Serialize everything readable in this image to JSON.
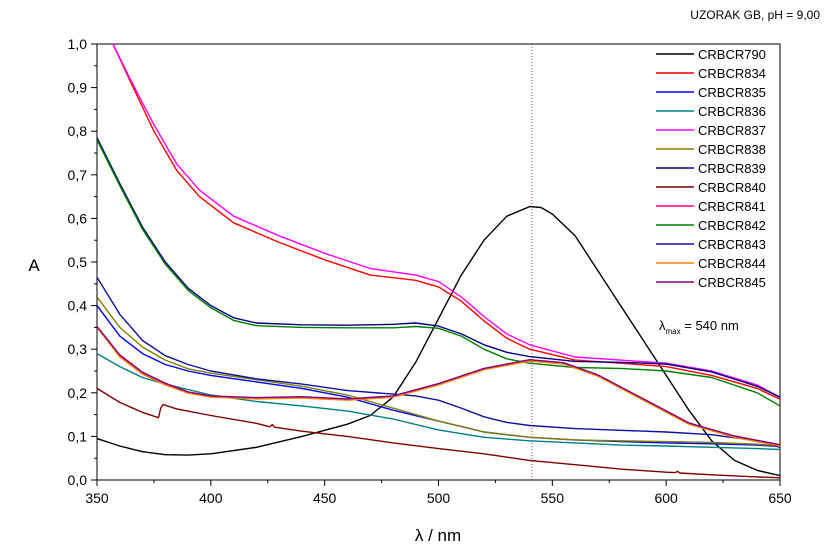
{
  "chart_data": {
    "type": "line",
    "title": "UZORAK GB, pH = 9,00",
    "xlabel": "λ / nm",
    "ylabel": "A",
    "xlim": [
      350,
      650
    ],
    "ylim": [
      0.0,
      1.0
    ],
    "x_ticks": [
      "350",
      "400",
      "450",
      "500",
      "550",
      "600",
      "650"
    ],
    "y_ticks": [
      "0,0",
      "0,1",
      "0,2",
      "0,3",
      "0,4",
      "0,5",
      "0,6",
      "0,7",
      "0,8",
      "0,9",
      "1,0"
    ],
    "legend_position": "top-right",
    "grid": false,
    "annotation": {
      "lambda": "λ",
      "subscript": "max",
      "text": " = 540 nm",
      "vline_x": 541
    },
    "series": [
      {
        "name": "CRBCR790",
        "color": "#000000",
        "points": [
          [
            350,
            0.095
          ],
          [
            360,
            0.078
          ],
          [
            370,
            0.065
          ],
          [
            380,
            0.058
          ],
          [
            390,
            0.057
          ],
          [
            400,
            0.06
          ],
          [
            420,
            0.075
          ],
          [
            440,
            0.1
          ],
          [
            460,
            0.128
          ],
          [
            470,
            0.148
          ],
          [
            480,
            0.19
          ],
          [
            490,
            0.27
          ],
          [
            500,
            0.37
          ],
          [
            510,
            0.47
          ],
          [
            520,
            0.55
          ],
          [
            530,
            0.605
          ],
          [
            540,
            0.627
          ],
          [
            545,
            0.625
          ],
          [
            550,
            0.61
          ],
          [
            560,
            0.56
          ],
          [
            570,
            0.48
          ],
          [
            580,
            0.4
          ],
          [
            590,
            0.32
          ],
          [
            600,
            0.24
          ],
          [
            610,
            0.16
          ],
          [
            620,
            0.09
          ],
          [
            630,
            0.045
          ],
          [
            640,
            0.022
          ],
          [
            650,
            0.01
          ]
        ]
      },
      {
        "name": "CRBCR834",
        "color": "#ff0000",
        "points": [
          [
            357,
            1.0
          ],
          [
            365,
            0.91
          ],
          [
            375,
            0.8
          ],
          [
            385,
            0.71
          ],
          [
            395,
            0.65
          ],
          [
            410,
            0.59
          ],
          [
            430,
            0.545
          ],
          [
            450,
            0.505
          ],
          [
            470,
            0.47
          ],
          [
            490,
            0.458
          ],
          [
            500,
            0.443
          ],
          [
            510,
            0.41
          ],
          [
            520,
            0.365
          ],
          [
            530,
            0.325
          ],
          [
            540,
            0.3
          ],
          [
            560,
            0.275
          ],
          [
            580,
            0.268
          ],
          [
            600,
            0.26
          ],
          [
            620,
            0.24
          ],
          [
            640,
            0.21
          ],
          [
            650,
            0.185
          ]
        ]
      },
      {
        "name": "CRBCR835",
        "color": "#0000ff",
        "points": [
          [
            350,
            0.4
          ],
          [
            360,
            0.33
          ],
          [
            370,
            0.29
          ],
          [
            380,
            0.265
          ],
          [
            390,
            0.25
          ],
          [
            400,
            0.24
          ],
          [
            420,
            0.225
          ],
          [
            440,
            0.21
          ],
          [
            460,
            0.19
          ],
          [
            480,
            0.16
          ],
          [
            500,
            0.135
          ],
          [
            520,
            0.11
          ],
          [
            540,
            0.098
          ],
          [
            560,
            0.092
          ],
          [
            580,
            0.088
          ],
          [
            600,
            0.085
          ],
          [
            620,
            0.083
          ],
          [
            640,
            0.08
          ],
          [
            650,
            0.077
          ]
        ]
      },
      {
        "name": "CRBCR836",
        "color": "#008080",
        "points": [
          [
            350,
            0.29
          ],
          [
            360,
            0.26
          ],
          [
            370,
            0.235
          ],
          [
            380,
            0.22
          ],
          [
            400,
            0.195
          ],
          [
            420,
            0.18
          ],
          [
            440,
            0.17
          ],
          [
            460,
            0.158
          ],
          [
            480,
            0.14
          ],
          [
            500,
            0.115
          ],
          [
            520,
            0.098
          ],
          [
            540,
            0.09
          ],
          [
            560,
            0.085
          ],
          [
            580,
            0.08
          ],
          [
            600,
            0.078
          ],
          [
            620,
            0.075
          ],
          [
            640,
            0.072
          ],
          [
            650,
            0.07
          ]
        ]
      },
      {
        "name": "CRBCR837",
        "color": "#ff00ff",
        "points": [
          [
            357,
            1.0
          ],
          [
            365,
            0.915
          ],
          [
            375,
            0.815
          ],
          [
            385,
            0.725
          ],
          [
            395,
            0.665
          ],
          [
            410,
            0.605
          ],
          [
            430,
            0.56
          ],
          [
            450,
            0.52
          ],
          [
            470,
            0.485
          ],
          [
            490,
            0.47
          ],
          [
            500,
            0.455
          ],
          [
            510,
            0.42
          ],
          [
            520,
            0.375
          ],
          [
            530,
            0.335
          ],
          [
            540,
            0.31
          ],
          [
            560,
            0.282
          ],
          [
            580,
            0.275
          ],
          [
            600,
            0.268
          ],
          [
            620,
            0.25
          ],
          [
            640,
            0.218
          ],
          [
            650,
            0.19
          ]
        ]
      },
      {
        "name": "CRBCR838",
        "color": "#808000",
        "points": [
          [
            350,
            0.42
          ],
          [
            360,
            0.35
          ],
          [
            370,
            0.305
          ],
          [
            380,
            0.275
          ],
          [
            390,
            0.255
          ],
          [
            400,
            0.245
          ],
          [
            420,
            0.23
          ],
          [
            440,
            0.215
          ],
          [
            460,
            0.195
          ],
          [
            480,
            0.165
          ],
          [
            500,
            0.135
          ],
          [
            520,
            0.11
          ],
          [
            540,
            0.098
          ],
          [
            560,
            0.092
          ],
          [
            580,
            0.09
          ],
          [
            600,
            0.088
          ],
          [
            620,
            0.086
          ],
          [
            640,
            0.082
          ],
          [
            650,
            0.078
          ]
        ]
      },
      {
        "name": "CRBCR839",
        "color": "#000080",
        "points": [
          [
            350,
            0.785
          ],
          [
            360,
            0.68
          ],
          [
            370,
            0.58
          ],
          [
            380,
            0.5
          ],
          [
            390,
            0.44
          ],
          [
            400,
            0.4
          ],
          [
            410,
            0.372
          ],
          [
            420,
            0.36
          ],
          [
            440,
            0.356
          ],
          [
            460,
            0.355
          ],
          [
            480,
            0.357
          ],
          [
            490,
            0.36
          ],
          [
            500,
            0.353
          ],
          [
            510,
            0.335
          ],
          [
            520,
            0.31
          ],
          [
            530,
            0.293
          ],
          [
            540,
            0.283
          ],
          [
            560,
            0.272
          ],
          [
            580,
            0.27
          ],
          [
            600,
            0.266
          ],
          [
            620,
            0.248
          ],
          [
            640,
            0.215
          ],
          [
            650,
            0.19
          ]
        ]
      },
      {
        "name": "CRBCR840",
        "color": "#800000",
        "points": [
          [
            350,
            0.21
          ],
          [
            360,
            0.178
          ],
          [
            370,
            0.155
          ],
          [
            377,
            0.143
          ],
          [
            378,
            0.165
          ],
          [
            379,
            0.173
          ],
          [
            385,
            0.163
          ],
          [
            400,
            0.148
          ],
          [
            420,
            0.13
          ],
          [
            426,
            0.122
          ],
          [
            427,
            0.127
          ],
          [
            428,
            0.121
          ],
          [
            440,
            0.112
          ],
          [
            460,
            0.1
          ],
          [
            480,
            0.085
          ],
          [
            500,
            0.072
          ],
          [
            520,
            0.06
          ],
          [
            540,
            0.045
          ],
          [
            560,
            0.035
          ],
          [
            580,
            0.025
          ],
          [
            600,
            0.018
          ],
          [
            604,
            0.017
          ],
          [
            605,
            0.02
          ],
          [
            606,
            0.016
          ],
          [
            620,
            0.012
          ],
          [
            640,
            0.007
          ],
          [
            650,
            0.005
          ]
        ]
      },
      {
        "name": "CRBCR841",
        "color": "#ff0080",
        "points": [
          [
            350,
            0.35
          ],
          [
            360,
            0.285
          ],
          [
            370,
            0.245
          ],
          [
            380,
            0.22
          ],
          [
            390,
            0.2
          ],
          [
            400,
            0.192
          ],
          [
            420,
            0.188
          ],
          [
            440,
            0.19
          ],
          [
            460,
            0.185
          ],
          [
            480,
            0.192
          ],
          [
            500,
            0.22
          ],
          [
            520,
            0.255
          ],
          [
            540,
            0.275
          ],
          [
            555,
            0.268
          ],
          [
            570,
            0.24
          ],
          [
            590,
            0.185
          ],
          [
            610,
            0.13
          ],
          [
            630,
            0.1
          ],
          [
            650,
            0.08
          ]
        ]
      },
      {
        "name": "CRBCR842",
        "color": "#008000",
        "points": [
          [
            350,
            0.78
          ],
          [
            360,
            0.675
          ],
          [
            370,
            0.575
          ],
          [
            380,
            0.495
          ],
          [
            390,
            0.435
          ],
          [
            400,
            0.395
          ],
          [
            410,
            0.366
          ],
          [
            420,
            0.354
          ],
          [
            440,
            0.35
          ],
          [
            460,
            0.349
          ],
          [
            480,
            0.349
          ],
          [
            490,
            0.352
          ],
          [
            500,
            0.348
          ],
          [
            510,
            0.33
          ],
          [
            520,
            0.3
          ],
          [
            530,
            0.278
          ],
          [
            540,
            0.268
          ],
          [
            560,
            0.258
          ],
          [
            580,
            0.256
          ],
          [
            600,
            0.25
          ],
          [
            620,
            0.235
          ],
          [
            640,
            0.2
          ],
          [
            650,
            0.17
          ]
        ]
      },
      {
        "name": "CRBCR843",
        "color": "#1010a0",
        "points": [
          [
            350,
            0.465
          ],
          [
            360,
            0.38
          ],
          [
            370,
            0.32
          ],
          [
            380,
            0.285
          ],
          [
            390,
            0.265
          ],
          [
            400,
            0.25
          ],
          [
            420,
            0.232
          ],
          [
            440,
            0.22
          ],
          [
            460,
            0.205
          ],
          [
            480,
            0.197
          ],
          [
            490,
            0.193
          ],
          [
            500,
            0.183
          ],
          [
            510,
            0.165
          ],
          [
            520,
            0.145
          ],
          [
            530,
            0.132
          ],
          [
            540,
            0.125
          ],
          [
            560,
            0.118
          ],
          [
            580,
            0.114
          ],
          [
            600,
            0.11
          ],
          [
            620,
            0.104
          ],
          [
            640,
            0.09
          ],
          [
            650,
            0.075
          ]
        ]
      },
      {
        "name": "CRBCR844",
        "color": "#ff8000",
        "points": [
          [
            350,
            0.35
          ],
          [
            360,
            0.282
          ],
          [
            370,
            0.243
          ],
          [
            380,
            0.218
          ],
          [
            390,
            0.199
          ],
          [
            400,
            0.19
          ],
          [
            420,
            0.186
          ],
          [
            440,
            0.188
          ],
          [
            460,
            0.183
          ],
          [
            480,
            0.19
          ],
          [
            500,
            0.218
          ],
          [
            520,
            0.253
          ],
          [
            540,
            0.273
          ],
          [
            555,
            0.266
          ],
          [
            570,
            0.238
          ],
          [
            590,
            0.183
          ],
          [
            610,
            0.128
          ],
          [
            630,
            0.098
          ],
          [
            650,
            0.078
          ]
        ]
      },
      {
        "name": "CRBCR845",
        "color": "#800080",
        "points": [
          [
            350,
            0.352
          ],
          [
            360,
            0.287
          ],
          [
            370,
            0.247
          ],
          [
            380,
            0.222
          ],
          [
            390,
            0.202
          ],
          [
            400,
            0.193
          ],
          [
            420,
            0.189
          ],
          [
            440,
            0.191
          ],
          [
            460,
            0.186
          ],
          [
            480,
            0.193
          ],
          [
            500,
            0.221
          ],
          [
            520,
            0.256
          ],
          [
            540,
            0.276
          ],
          [
            555,
            0.269
          ],
          [
            570,
            0.241
          ],
          [
            590,
            0.186
          ],
          [
            610,
            0.131
          ],
          [
            630,
            0.101
          ],
          [
            650,
            0.081
          ]
        ]
      }
    ]
  }
}
